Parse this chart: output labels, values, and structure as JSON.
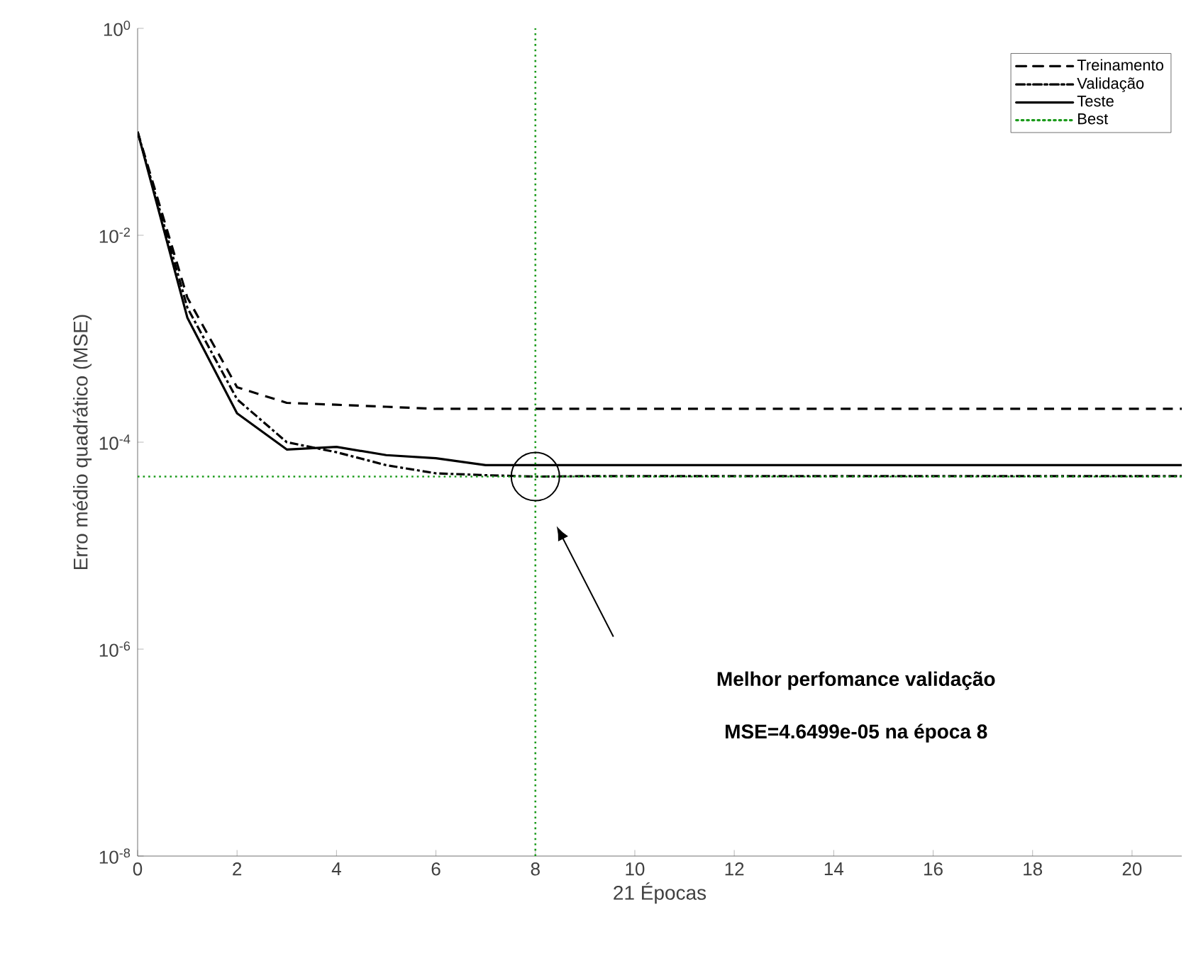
{
  "chart_data": {
    "type": "line",
    "xlabel": "21 Épocas",
    "ylabel": "Erro médio quadrático  (MSE)",
    "x": [
      0,
      1,
      2,
      3,
      4,
      5,
      6,
      7,
      8,
      9,
      10,
      11,
      12,
      13,
      14,
      15,
      16,
      17,
      18,
      19,
      20,
      21
    ],
    "series": [
      {
        "name": "Treinamento",
        "color": "#000000",
        "line_style": "dashed",
        "values": [
          0.1,
          0.0025,
          0.00034,
          0.00024,
          0.00023,
          0.00022,
          0.00021,
          0.00021,
          0.00021,
          0.00021,
          0.00021,
          0.00021,
          0.00021,
          0.00021,
          0.00021,
          0.00021,
          0.00021,
          0.00021,
          0.00021,
          0.00021,
          0.00021,
          0.00021
        ]
      },
      {
        "name": "Validação",
        "color": "#000000",
        "line_style": "dashdot",
        "values": [
          0.1,
          0.002,
          0.00026,
          0.0001,
          8e-05,
          6e-05,
          5e-05,
          4.8e-05,
          4.6499e-05,
          4.7e-05,
          4.7e-05,
          4.7e-05,
          4.7e-05,
          4.7e-05,
          4.7e-05,
          4.7e-05,
          4.7e-05,
          4.7e-05,
          4.7e-05,
          4.7e-05,
          4.7e-05,
          4.7e-05
        ]
      },
      {
        "name": "Teste",
        "color": "#000000",
        "line_style": "solid",
        "values": [
          0.1,
          0.0016,
          0.00019,
          8.5e-05,
          9e-05,
          7.5e-05,
          7e-05,
          6e-05,
          6e-05,
          6e-05,
          6e-05,
          6e-05,
          6e-05,
          6e-05,
          6e-05,
          6e-05,
          6e-05,
          6e-05,
          6e-05,
          6e-05,
          6e-05,
          6e-05
        ]
      },
      {
        "name": "Best",
        "type": "line",
        "color": "#1a9a1a",
        "line_style": "dotted",
        "x": [
          8,
          8
        ],
        "values": [
          1e-08,
          1
        ]
      }
    ],
    "ref_lines": [
      {
        "axis": "y",
        "value": 4.6499e-05,
        "color": "#1a9a1a",
        "line_style": "dotted"
      }
    ],
    "annotations": [
      "Melhor perfomance validação",
      "MSE=4.6499e-05 na época 8"
    ],
    "log": "y",
    "xlim": [
      0,
      21
    ],
    "ylim": [
      1e-08,
      1
    ],
    "xticks": [
      0,
      2,
      4,
      6,
      8,
      10,
      12,
      14,
      16,
      18,
      20
    ],
    "yticks": [
      {
        "value": 1e-08,
        "label": "10$^{-8}$"
      },
      {
        "value": 1e-06,
        "label": "10$^{-6}$"
      },
      {
        "value": 0.0001,
        "label": "10$^{-4}$"
      },
      {
        "value": 0.01,
        "label": "10$^{-2}$"
      },
      {
        "value": 1,
        "label": "10$^{0}$"
      }
    ],
    "legend": "top right",
    "grid": false
  }
}
